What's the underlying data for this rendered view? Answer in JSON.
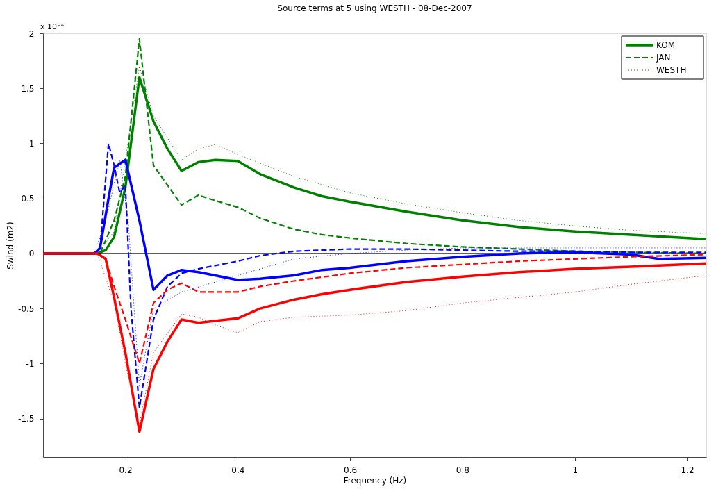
{
  "chart_data": {
    "type": "line",
    "title": "Source terms at 5 using WESTH - 08-Dec-2007",
    "xlabel": "Frequency (Hz)",
    "ylabel": "Swind (m2)",
    "annotations": [
      "x 10⁻⁴"
    ],
    "xlim": [
      0.0535,
      1.234
    ],
    "xticks": [
      0.2,
      0.4,
      0.6,
      0.8,
      1,
      1.2
    ],
    "ylim": [
      -1.85,
      2
    ],
    "yticks": [
      -1.5,
      -1,
      -0.5,
      0,
      0.5,
      1,
      1.5,
      2
    ],
    "grid": false,
    "legend": "top right",
    "marker": "none",
    "ref_lines": [
      {
        "axis": "y",
        "value": 0,
        "color": "#000000",
        "line_style": "solid"
      }
    ],
    "series": [
      {
        "name": "KOM",
        "color": "#008000",
        "line_style": "solid",
        "x": [
          0.0535,
          0.15,
          0.165,
          0.18,
          0.2,
          0.225,
          0.25,
          0.275,
          0.3,
          0.33,
          0.36,
          0.4,
          0.44,
          0.5,
          0.55,
          0.6,
          0.7,
          0.8,
          0.9,
          1.0,
          1.1,
          1.234
        ],
        "values": [
          0,
          0,
          0.03,
          0.15,
          0.6,
          1.6,
          1.2,
          0.95,
          0.75,
          0.83,
          0.85,
          0.84,
          0.72,
          0.6,
          0.52,
          0.47,
          0.38,
          0.3,
          0.24,
          0.2,
          0.17,
          0.13
        ]
      },
      {
        "name": "JAN",
        "color": "#008000",
        "line_style": "dashed",
        "x": [
          0.0535,
          0.155,
          0.18,
          0.2,
          0.225,
          0.25,
          0.275,
          0.3,
          0.33,
          0.36,
          0.4,
          0.44,
          0.5,
          0.55,
          0.6,
          0.7,
          0.8,
          0.9,
          1.0,
          1.1,
          1.234
        ],
        "values": [
          0,
          0,
          0.3,
          0.7,
          1.95,
          0.8,
          0.62,
          0.44,
          0.53,
          0.48,
          0.42,
          0.32,
          0.22,
          0.17,
          0.14,
          0.09,
          0.06,
          0.04,
          0.02,
          0.01,
          0.0
        ]
      },
      {
        "name": "WESTH",
        "color": "#008000",
        "line_style": "dotted",
        "x": [
          0.0535,
          0.15,
          0.18,
          0.2,
          0.225,
          0.25,
          0.3,
          0.33,
          0.36,
          0.4,
          0.5,
          0.6,
          0.7,
          0.8,
          0.9,
          1.0,
          1.1,
          1.234
        ],
        "values": [
          0,
          0,
          0.2,
          0.85,
          1.7,
          1.25,
          0.85,
          0.95,
          0.99,
          0.9,
          0.7,
          0.55,
          0.45,
          0.37,
          0.3,
          0.25,
          0.21,
          0.18
        ]
      },
      {
        "color": "#0000ff",
        "line_style": "solid",
        "x": [
          0.0535,
          0.145,
          0.155,
          0.17,
          0.18,
          0.2,
          0.225,
          0.25,
          0.275,
          0.3,
          0.33,
          0.4,
          0.44,
          0.5,
          0.55,
          0.6,
          0.7,
          0.8,
          0.9,
          1.0,
          1.1,
          1.15,
          1.234
        ],
        "values": [
          0,
          0,
          0.05,
          0.5,
          0.78,
          0.85,
          0.3,
          -0.33,
          -0.2,
          -0.15,
          -0.17,
          -0.24,
          -0.23,
          -0.2,
          -0.15,
          -0.13,
          -0.07,
          -0.03,
          0.0,
          0.01,
          -0.01,
          -0.05,
          -0.04
        ]
      },
      {
        "color": "#0000ff",
        "line_style": "dashed",
        "x": [
          0.0535,
          0.145,
          0.155,
          0.17,
          0.18,
          0.19,
          0.2,
          0.21,
          0.225,
          0.25,
          0.275,
          0.3,
          0.33,
          0.4,
          0.44,
          0.5,
          0.6,
          0.7,
          0.8,
          0.9,
          1.0,
          1.1,
          1.234
        ],
        "values": [
          0,
          0,
          0.05,
          1.0,
          0.8,
          0.55,
          0.62,
          -0.5,
          -1.4,
          -0.6,
          -0.3,
          -0.18,
          -0.14,
          -0.07,
          -0.02,
          0.02,
          0.04,
          0.04,
          0.03,
          0.02,
          0.02,
          0.01,
          0.01
        ]
      },
      {
        "color": "#0000ff",
        "line_style": "dotted",
        "x": [
          0.0535,
          0.145,
          0.165,
          0.19,
          0.205,
          0.225,
          0.25,
          0.3,
          0.4,
          0.5,
          0.6,
          0.7,
          0.8,
          1.0,
          1.234
        ],
        "values": [
          0,
          0,
          0.3,
          0.85,
          0.3,
          -1.2,
          -0.5,
          -0.35,
          -0.2,
          -0.05,
          0.0,
          0.03,
          0.05,
          0.05,
          0.05
        ]
      },
      {
        "color": "#ff0000",
        "line_style": "solid",
        "x": [
          0.0535,
          0.15,
          0.165,
          0.18,
          0.2,
          0.225,
          0.25,
          0.275,
          0.3,
          0.33,
          0.4,
          0.44,
          0.5,
          0.55,
          0.6,
          0.7,
          0.8,
          0.9,
          1.0,
          1.1,
          1.234
        ],
        "values": [
          0,
          0,
          -0.05,
          -0.4,
          -0.9,
          -1.62,
          -1.05,
          -0.8,
          -0.6,
          -0.63,
          -0.59,
          -0.5,
          -0.42,
          -0.37,
          -0.33,
          -0.26,
          -0.21,
          -0.17,
          -0.14,
          -0.12,
          -0.09
        ]
      },
      {
        "color": "#ff0000",
        "line_style": "dashed",
        "x": [
          0.0535,
          0.15,
          0.165,
          0.18,
          0.2,
          0.225,
          0.25,
          0.275,
          0.3,
          0.33,
          0.4,
          0.44,
          0.5,
          0.6,
          0.7,
          0.8,
          0.9,
          1.0,
          1.1,
          1.234
        ],
        "values": [
          0,
          0,
          -0.05,
          -0.3,
          -0.6,
          -1.0,
          -0.45,
          -0.33,
          -0.27,
          -0.35,
          -0.35,
          -0.3,
          -0.25,
          -0.18,
          -0.13,
          -0.1,
          -0.07,
          -0.05,
          -0.03,
          -0.01
        ]
      },
      {
        "color": "#ff0000",
        "line_style": "dotted",
        "x": [
          0.0535,
          0.15,
          0.18,
          0.2,
          0.225,
          0.25,
          0.3,
          0.33,
          0.36,
          0.4,
          0.44,
          0.5,
          0.6,
          0.7,
          0.8,
          0.9,
          1.0,
          1.1,
          1.234
        ],
        "values": [
          0,
          0,
          -0.45,
          -1.0,
          -1.55,
          -0.9,
          -0.55,
          -0.58,
          -0.65,
          -0.72,
          -0.62,
          -0.58,
          -0.56,
          -0.52,
          -0.45,
          -0.4,
          -0.35,
          -0.28,
          -0.2
        ]
      }
    ]
  }
}
